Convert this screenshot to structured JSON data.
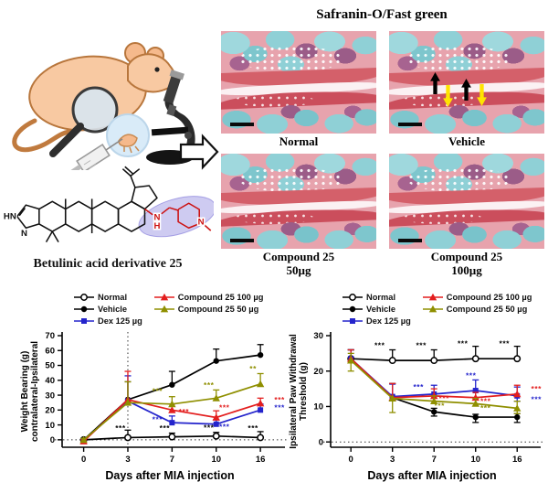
{
  "structure": {
    "caption": "Betulinic acid derivative 25",
    "atoms": {
      "pyrazole_hn": "HN",
      "pyrazole_n": "N",
      "amine_n": "N",
      "amine_h": "H",
      "piperidine_n": "N"
    },
    "highlight_color": "#8a82dd"
  },
  "histology": {
    "title": "Safranin-O/Fast green",
    "panels": [
      {
        "id": "normal",
        "label": "Normal",
        "sublabel": ""
      },
      {
        "id": "vehicle",
        "label": "Vehicle",
        "sublabel": ""
      },
      {
        "id": "compound25-50",
        "label": "Compound 25",
        "sublabel": "50µg"
      },
      {
        "id": "compound25-100",
        "label": "Compound 25",
        "sublabel": "100µg"
      }
    ],
    "vehicle_arrow_colors": {
      "black": "#000000",
      "yellow": "#ffe400"
    }
  },
  "chart_data": [
    {
      "type": "line",
      "title": "",
      "xlabel": "Days after MIA injection",
      "ylabel": "Weight Bearing (g)\ncontralateral-Ipsilateral",
      "x_categories": [
        "0",
        "3",
        "7",
        "10",
        "16"
      ],
      "ylim": [
        -5,
        70
      ],
      "yticks": [
        0,
        10,
        20,
        30,
        40,
        50,
        60,
        70
      ],
      "grid": false,
      "legend_position": "top",
      "vline_at_x": "3",
      "hline_at_y": 0,
      "series": [
        {
          "name": "Normal",
          "color": "#000000",
          "marker": "circle-open",
          "values": [
            0,
            1.5,
            2,
            2.5,
            1.5
          ],
          "err_up": [
            1,
            5,
            2.5,
            2.5,
            4
          ],
          "err_dn": [
            0,
            0,
            0,
            0,
            0
          ]
        },
        {
          "name": "Vehicle",
          "color": "#000000",
          "marker": "circle",
          "values": [
            0,
            27,
            37,
            53,
            57
          ],
          "err_up": [
            1,
            12,
            9,
            8,
            7
          ],
          "err_dn": [
            0,
            0,
            0,
            0,
            0
          ]
        },
        {
          "name": "Dex 125 µg",
          "color": "#2424cc",
          "marker": "square",
          "values": [
            -0.5,
            26,
            11.5,
            10.5,
            20
          ],
          "err_up": [
            1,
            17,
            4.5,
            3,
            4
          ],
          "err_dn": [
            0,
            0,
            0,
            0,
            0
          ]
        },
        {
          "name": "Compound 25 100 µg",
          "color": "#e31e1e",
          "marker": "triangle",
          "values": [
            -1,
            27,
            20,
            15,
            24.5
          ],
          "err_up": [
            1,
            19,
            4,
            4.5,
            3.5
          ],
          "err_dn": [
            1,
            0,
            0,
            0,
            0
          ]
        },
        {
          "name": "Compound 25 50 µg",
          "color": "#8f8f00",
          "marker": "triangle",
          "values": [
            0,
            25,
            24,
            28,
            37.5
          ],
          "err_up": [
            1,
            14,
            5,
            5.5,
            7
          ],
          "err_dn": [
            0,
            0,
            0,
            0,
            0
          ]
        }
      ],
      "annotations": [
        {
          "x": "3",
          "y": 6,
          "dx": -8,
          "text": "***",
          "color": "#000000"
        },
        {
          "x": "7",
          "y": 6,
          "dx": -8,
          "text": "***",
          "color": "#000000"
        },
        {
          "x": "10",
          "y": 6.5,
          "dx": -8,
          "text": "***",
          "color": "#000000"
        },
        {
          "x": "16",
          "y": 6,
          "dx": -8,
          "text": "***",
          "color": "#000000"
        },
        {
          "x": "7",
          "y": 31,
          "dx": -16,
          "text": "***",
          "color": "#8f8f00"
        },
        {
          "x": "10",
          "y": 35,
          "dx": -8,
          "text": "***",
          "color": "#8f8f00"
        },
        {
          "x": "16",
          "y": 46,
          "dx": -8,
          "text": "**",
          "color": "#8f8f00"
        },
        {
          "x": "7",
          "y": 17,
          "dx": 13,
          "text": "***",
          "color": "#e31e1e"
        },
        {
          "x": "10",
          "y": 20,
          "dx": 9,
          "text": "***",
          "color": "#e31e1e"
        },
        {
          "x": "16",
          "y": 25,
          "dx": 21,
          "text": "***",
          "color": "#e31e1e"
        },
        {
          "x": "7",
          "y": 12,
          "dx": -16,
          "text": "***",
          "color": "#2424cc"
        },
        {
          "x": "10",
          "y": 7,
          "dx": 9,
          "text": "***",
          "color": "#2424cc"
        },
        {
          "x": "16",
          "y": 20,
          "dx": 21,
          "text": "***",
          "color": "#2424cc"
        }
      ]
    },
    {
      "type": "line",
      "title": "",
      "xlabel": "Days after MIA injection",
      "ylabel": "Ipsilateral Paw Withdrawal\nThreshold (g)",
      "x_categories": [
        "0",
        "3",
        "7",
        "10",
        "16"
      ],
      "ylim": [
        -1.5,
        30
      ],
      "yticks": [
        0,
        10,
        20,
        30
      ],
      "grid": false,
      "legend_position": "top",
      "vline_at_x": null,
      "hline_at_y": 0,
      "series": [
        {
          "name": "Normal",
          "color": "#000000",
          "marker": "circle-open",
          "values": [
            23.5,
            23,
            23,
            23.5,
            23.5
          ],
          "err_up": [
            2.5,
            3,
            3,
            3.5,
            3.5
          ],
          "err_dn": [
            0,
            0,
            0,
            0,
            0
          ]
        },
        {
          "name": "Vehicle",
          "color": "#000000",
          "marker": "circle",
          "values": [
            23.5,
            12.5,
            8.5,
            7,
            7
          ],
          "err_up": [
            2.5,
            4,
            1,
            0.8,
            1
          ],
          "err_dn": [
            0,
            0,
            1.2,
            1.5,
            1.5
          ]
        },
        {
          "name": "Dex 125 µg",
          "color": "#2424cc",
          "marker": "square",
          "values": [
            23.5,
            12.8,
            13.5,
            14.5,
            13
          ],
          "err_up": [
            2.5,
            3.5,
            2.5,
            3,
            2.5
          ],
          "err_dn": [
            0,
            0,
            0,
            0,
            1.5
          ]
        },
        {
          "name": "Compound 25 100 µg",
          "color": "#e31e1e",
          "marker": "triangle",
          "values": [
            23.5,
            12.5,
            13,
            12.5,
            13.5
          ],
          "err_up": [
            2.5,
            4,
            2,
            1.5,
            2.5
          ],
          "err_dn": [
            0,
            0,
            0,
            0,
            0
          ]
        },
        {
          "name": "Compound 25 50 µg",
          "color": "#8f8f00",
          "marker": "triangle",
          "values": [
            23,
            12.3,
            11.5,
            10.8,
            9.5
          ],
          "err_up": [
            2,
            0,
            1.5,
            1.5,
            2
          ],
          "err_dn": [
            3,
            4,
            0,
            0,
            1.5
          ]
        }
      ],
      "annotations": [
        {
          "x": "3",
          "y": 26.5,
          "dx": -14,
          "text": "***",
          "color": "#000000"
        },
        {
          "x": "7",
          "y": 26.5,
          "dx": -14,
          "text": "***",
          "color": "#000000"
        },
        {
          "x": "10",
          "y": 27,
          "dx": -14,
          "text": "***",
          "color": "#000000"
        },
        {
          "x": "16",
          "y": 27,
          "dx": -14,
          "text": "***",
          "color": "#000000"
        },
        {
          "x": "7",
          "y": 14.8,
          "dx": -17,
          "text": "***",
          "color": "#2424cc"
        },
        {
          "x": "10",
          "y": 18,
          "dx": -5,
          "text": "***",
          "color": "#2424cc"
        },
        {
          "x": "16",
          "y": 11.3,
          "dx": 21,
          "text": "***",
          "color": "#2424cc"
        },
        {
          "x": "7",
          "y": 11.5,
          "dx": 11,
          "text": "***",
          "color": "#e31e1e"
        },
        {
          "x": "10",
          "y": 10.8,
          "dx": 11,
          "text": "***",
          "color": "#e31e1e"
        },
        {
          "x": "16",
          "y": 14.2,
          "dx": 21,
          "text": "***",
          "color": "#e31e1e"
        },
        {
          "x": "7",
          "y": 9.5,
          "dx": 6,
          "text": "***",
          "color": "#8f8f00"
        },
        {
          "x": "10",
          "y": 8.8,
          "dx": 11,
          "text": "***",
          "color": "#8f8f00"
        }
      ]
    }
  ]
}
